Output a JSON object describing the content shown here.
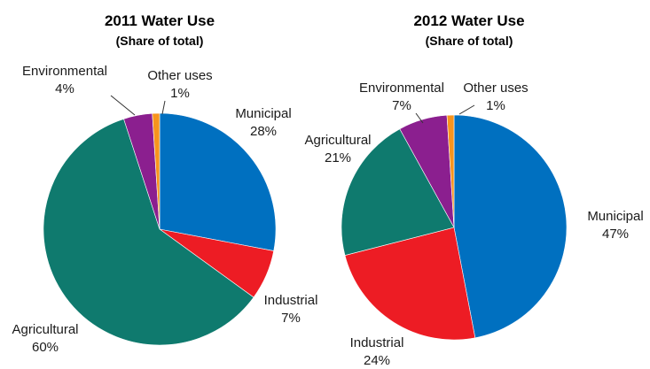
{
  "colors": {
    "Municipal": "#0070c0",
    "Industrial": "#ed1c24",
    "Agricultural": "#0f7a6e",
    "Environmental": "#8b1f8f",
    "Other uses": "#f7941d"
  },
  "chart_data": [
    {
      "type": "pie",
      "title": "2011 Water Use",
      "subtitle": "(Share of total)",
      "start_angle_deg": 0,
      "slices": [
        {
          "label": "Municipal",
          "value": 28,
          "value_label": "28%"
        },
        {
          "label": "Industrial",
          "value": 7,
          "value_label": "7%"
        },
        {
          "label": "Agricultural",
          "value": 60,
          "value_label": "60%"
        },
        {
          "label": "Environmental",
          "value": 4,
          "value_label": "4%"
        },
        {
          "label": "Other uses",
          "value": 1,
          "value_label": "1%"
        }
      ]
    },
    {
      "type": "pie",
      "title": "2012 Water Use",
      "subtitle": "(Share of total)",
      "start_angle_deg": 0,
      "slices": [
        {
          "label": "Municipal",
          "value": 47,
          "value_label": "47%"
        },
        {
          "label": "Industrial",
          "value": 24,
          "value_label": "24%"
        },
        {
          "label": "Agricultural",
          "value": 21,
          "value_label": "21%"
        },
        {
          "label": "Environmental",
          "value": 7,
          "value_label": "7%"
        },
        {
          "label": "Other uses",
          "value": 1,
          "value_label": "1%"
        }
      ]
    }
  ]
}
